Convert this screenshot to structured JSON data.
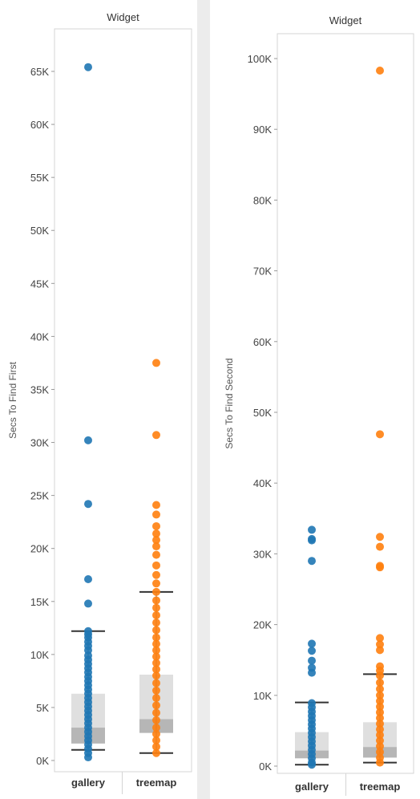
{
  "chart_data": [
    {
      "type": "scatter",
      "subtype": "box-plot-with-points",
      "title": "Widget",
      "ylabel": "Secs To Find First",
      "categories": [
        "gallery",
        "treemap"
      ],
      "ylim": [
        0,
        67000
      ],
      "yticks": [
        0,
        5000,
        10000,
        15000,
        20000,
        25000,
        30000,
        35000,
        40000,
        45000,
        50000,
        55000,
        60000,
        65000
      ],
      "ytick_labels": [
        "0K",
        "5K",
        "10K",
        "15K",
        "20K",
        "25K",
        "30K",
        "35K",
        "40K",
        "45K",
        "50K",
        "55K",
        "60K",
        "65K"
      ],
      "grid": false,
      "series": [
        {
          "name": "gallery",
          "color": "#1f77b4",
          "values": [
            65400,
            30200,
            24200,
            17100,
            14800,
            12200,
            11900,
            11600,
            11200,
            10800,
            10400,
            9900,
            9500,
            9100,
            8700,
            8300,
            7900,
            7500,
            7100,
            6700,
            6300,
            5900,
            5500,
            5100,
            4700,
            4300,
            3900,
            3500,
            3100,
            2700,
            2300,
            1900,
            1500,
            1100,
            700,
            300
          ],
          "box": {
            "whisker_low": 1000,
            "q1": 1600,
            "median": 3100,
            "q3": 6300,
            "whisker_high": 12200
          }
        },
        {
          "name": "treemap",
          "color": "#ff7f0e",
          "values": [
            37500,
            30700,
            24100,
            23200,
            22100,
            21400,
            20800,
            20200,
            19400,
            18400,
            17500,
            16700,
            15900,
            15100,
            14400,
            13700,
            13000,
            12300,
            11600,
            11000,
            10400,
            9800,
            9200,
            8600,
            8000,
            7300,
            6600,
            5900,
            5200,
            4500,
            3800,
            3100,
            2500,
            1900,
            1300,
            700
          ],
          "box": {
            "whisker_low": 700,
            "q1": 2600,
            "median": 3900,
            "q3": 8100,
            "whisker_high": 15900
          }
        }
      ]
    },
    {
      "type": "scatter",
      "subtype": "box-plot-with-points",
      "title": "Widget",
      "ylabel": "Secs To Find Second",
      "categories": [
        "gallery",
        "treemap"
      ],
      "ylim": [
        0,
        101000
      ],
      "yticks": [
        0,
        10000,
        20000,
        30000,
        40000,
        50000,
        60000,
        70000,
        80000,
        90000,
        100000
      ],
      "ytick_labels": [
        "0K",
        "10K",
        "20K",
        "30K",
        "40K",
        "50K",
        "60K",
        "70K",
        "80K",
        "90K",
        "100K"
      ],
      "grid": false,
      "series": [
        {
          "name": "gallery",
          "color": "#1f77b4",
          "values": [
            33400,
            32100,
            31900,
            29000,
            17300,
            16300,
            14900,
            13900,
            13200,
            8900,
            8300,
            7700,
            7100,
            6500,
            5900,
            5300,
            4700,
            4100,
            3500,
            2900,
            2300,
            1700,
            1100,
            500,
            200
          ],
          "box": {
            "whisker_low": 200,
            "q1": 1100,
            "median": 2200,
            "q3": 4800,
            "whisker_high": 9000
          }
        },
        {
          "name": "treemap",
          "color": "#ff7f0e",
          "values": [
            98300,
            46900,
            32400,
            31000,
            28300,
            28100,
            18100,
            17200,
            16400,
            14100,
            13500,
            12800,
            11800,
            10900,
            10000,
            9200,
            8400,
            7600,
            6800,
            6000,
            5200,
            4400,
            3600,
            2800,
            2000,
            1200,
            500
          ],
          "box": {
            "whisker_low": 500,
            "q1": 1200,
            "median": 2700,
            "q3": 6200,
            "whisker_high": 13000
          }
        }
      ]
    }
  ]
}
